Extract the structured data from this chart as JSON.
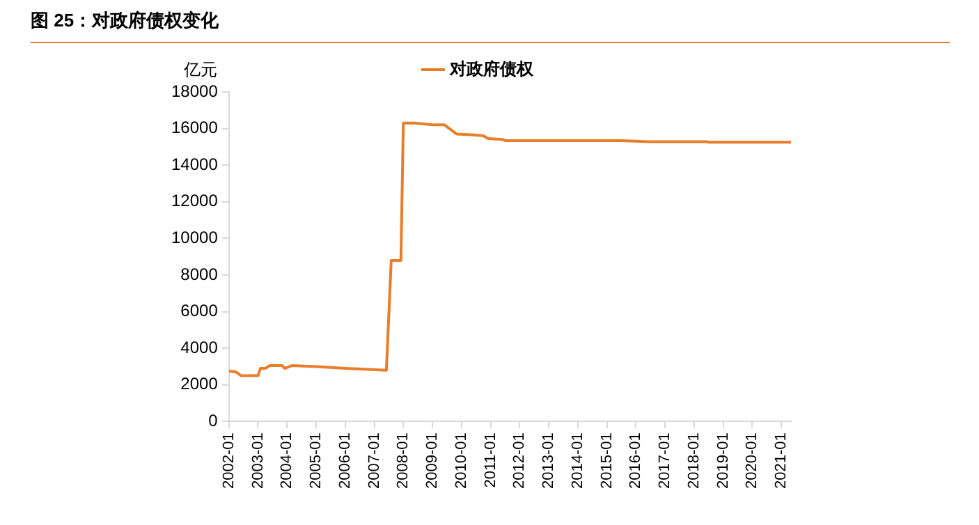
{
  "chart_data": {
    "type": "line",
    "title": "图 25：对政府债权变化",
    "ylabel": "亿元",
    "x": [
      "2002-01",
      "2002-04",
      "2002-06",
      "2003-01",
      "2003-02",
      "2003-04",
      "2003-06",
      "2003-11",
      "2003-12",
      "2004-03",
      "2005-01",
      "2006-01",
      "2007-06",
      "2007-08",
      "2007-12",
      "2008-01",
      "2008-06",
      "2009-01",
      "2009-06",
      "2009-08",
      "2009-11",
      "2010-06",
      "2010-10",
      "2010-12",
      "2011-06",
      "2011-07",
      "2015-07",
      "2016-06",
      "2018-06",
      "2018-07",
      "2021-05"
    ],
    "series": [
      {
        "name": "对政府债权",
        "color": "#e87d2a",
        "values": [
          2750,
          2700,
          2500,
          2500,
          2900,
          2900,
          3050,
          3050,
          2900,
          3050,
          3000,
          2900,
          2800,
          8800,
          8800,
          16300,
          16300,
          16200,
          16200,
          16000,
          15700,
          15650,
          15600,
          15450,
          15400,
          15340,
          15340,
          15280,
          15280,
          15250,
          15250
        ]
      }
    ],
    "xlim": [
      "2002-01",
      "2021-05"
    ],
    "xticks": [
      "2002-01",
      "2003-01",
      "2004-01",
      "2005-01",
      "2006-01",
      "2007-01",
      "2008-01",
      "2009-01",
      "2010-01",
      "2011-01",
      "2012-01",
      "2013-01",
      "2014-01",
      "2015-01",
      "2016-01",
      "2017-01",
      "2018-01",
      "2019-01",
      "2020-01",
      "2021-01"
    ],
    "ylim": [
      0,
      18000
    ],
    "yticks": [
      0,
      2000,
      4000,
      6000,
      8000,
      10000,
      12000,
      14000,
      16000,
      18000
    ],
    "grid": false,
    "legend": "top",
    "marker": "none",
    "line_style": "solid"
  }
}
